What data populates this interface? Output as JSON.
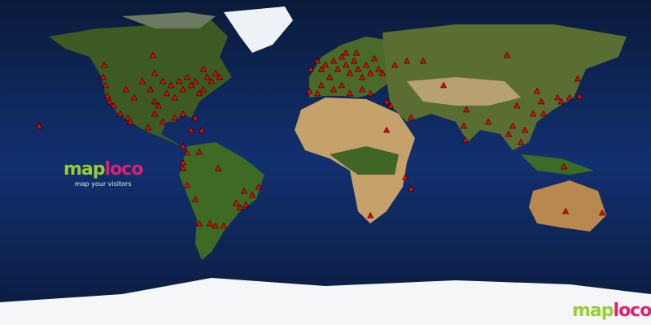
{
  "logo": {
    "word_a": "map",
    "word_b": "loco",
    "tagline": "map your visitors"
  },
  "corner_logo": {
    "word_a": "map",
    "word_b": "loco"
  },
  "projection": "equirectangular",
  "colors": {
    "ocean": "#0d2350",
    "marker": "#ff0000",
    "logo_green": "#9acd32",
    "logo_pink": "#e0206e"
  },
  "marker_icon": "triangle",
  "visitor_locations": [
    [
      54,
      -122.4
    ],
    [
      47.3,
      -122.9
    ],
    [
      42.8,
      -121.5
    ],
    [
      36.9,
      -120.6
    ],
    [
      33.8,
      -119.3
    ],
    [
      31.5,
      -117
    ],
    [
      27,
      -113.4
    ],
    [
      24.8,
      -109.4
    ],
    [
      40.5,
      -110.3
    ],
    [
      36,
      -105.8
    ],
    [
      45,
      -101.3
    ],
    [
      59.4,
      -95.4
    ],
    [
      49.5,
      -94.5
    ],
    [
      40.5,
      -96.8
    ],
    [
      33.8,
      -94.5
    ],
    [
      31.5,
      -92.3
    ],
    [
      45,
      -90
    ],
    [
      38.3,
      -87.8
    ],
    [
      42.8,
      -85.5
    ],
    [
      36,
      -83.3
    ],
    [
      45,
      -81
    ],
    [
      40.5,
      -78.8
    ],
    [
      47.3,
      -76.5
    ],
    [
      42.8,
      -74.3
    ],
    [
      45,
      -72
    ],
    [
      38.3,
      -69.8
    ],
    [
      40.5,
      -67.5
    ],
    [
      47.3,
      -65.3
    ],
    [
      45,
      -63
    ],
    [
      49.5,
      -60.8
    ],
    [
      47.3,
      -58.5
    ],
    [
      51.8,
      -67.5
    ],
    [
      27,
      -78.8
    ],
    [
      24.8,
      -83.3
    ],
    [
      27,
      -94.5
    ],
    [
      22.5,
      -90
    ],
    [
      19.4,
      -98.1
    ],
    [
      22.5,
      -108
    ],
    [
      24.8,
      -72
    ],
    [
      18,
      -68.4
    ],
    [
      18,
      -74.3
    ],
    [
      9,
      -78.8
    ],
    [
      5.4,
      -76.5
    ],
    [
      5.9,
      -69.8
    ],
    [
      0,
      -78.8
    ],
    [
      -3.2,
      -78.8
    ],
    [
      -3.2,
      -59.4
    ],
    [
      -12.6,
      -76.5
    ],
    [
      -20.3,
      -72
    ],
    [
      -15.8,
      -45
    ],
    [
      -18,
      -40.5
    ],
    [
      -13.5,
      -36.9
    ],
    [
      -22.5,
      -49.5
    ],
    [
      -24.8,
      -47.3
    ],
    [
      -23.4,
      -44.1
    ],
    [
      -33.8,
      -63.9
    ],
    [
      -35.1,
      -60.8
    ],
    [
      -35.1,
      -56.3
    ],
    [
      -33.8,
      -69.8
    ],
    [
      20.3,
      -158.4
    ],
    [
      51.8,
      -8.1
    ],
    [
      56.3,
      -4.5
    ],
    [
      51.8,
      -2.3
    ],
    [
      54,
      0
    ],
    [
      47.3,
      2.3
    ],
    [
      56.3,
      4.5
    ],
    [
      51.8,
      6.8
    ],
    [
      58.5,
      9
    ],
    [
      54,
      11.3
    ],
    [
      49.5,
      13.5
    ],
    [
      56.3,
      15.8
    ],
    [
      51.8,
      18
    ],
    [
      47.3,
      20.3
    ],
    [
      54,
      22.5
    ],
    [
      49.5,
      24.8
    ],
    [
      57.6,
      27
    ],
    [
      51.8,
      29.3
    ],
    [
      49.5,
      31.5
    ],
    [
      60.8,
      11.3
    ],
    [
      60.8,
      17.1
    ],
    [
      42.8,
      -2.3
    ],
    [
      38.3,
      -4.5
    ],
    [
      39.6,
      -9
    ],
    [
      40.5,
      4.5
    ],
    [
      42.8,
      9
    ],
    [
      38.3,
      13.5
    ],
    [
      40.5,
      20.3
    ],
    [
      38.3,
      24.8
    ],
    [
      33.8,
      33.8
    ],
    [
      54,
      38.3
    ],
    [
      56.3,
      45
    ],
    [
      56.3,
      54
    ],
    [
      42.8,
      65.3
    ],
    [
      24.8,
      47.3
    ],
    [
      31.5,
      36
    ],
    [
      29.3,
      77.9
    ],
    [
      20.3,
      76.5
    ],
    [
      12.6,
      77.4
    ],
    [
      59.4,
      100.4
    ],
    [
      39.6,
      117
    ],
    [
      33.8,
      119.3
    ],
    [
      31.5,
      105.8
    ],
    [
      20.3,
      103.5
    ],
    [
      15.8,
      101.3
    ],
    [
      11.3,
      108
    ],
    [
      18,
      110.3
    ],
    [
      27,
      114.8
    ],
    [
      36,
      128.3
    ],
    [
      33.8,
      130.5
    ],
    [
      36,
      135
    ],
    [
      36.9,
      140.4
    ],
    [
      46.4,
      139.5
    ],
    [
      27,
      120.6
    ],
    [
      22.5,
      90
    ],
    [
      -29.3,
      24.8
    ],
    [
      -8.1,
      44.1
    ],
    [
      -14.4,
      47.3
    ],
    [
      18,
      33.8
    ],
    [
      -27,
      132.8
    ],
    [
      -27.9,
      153
    ],
    [
      -2.3,
      131.9
    ]
  ]
}
